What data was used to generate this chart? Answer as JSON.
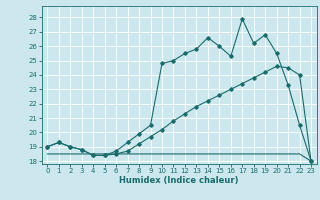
{
  "xlabel": "Humidex (Indice chaleur)",
  "bg_color": "#cce8ee",
  "grid_color": "#ffffff",
  "line_color": "#1a6b6b",
  "xlim": [
    -0.5,
    23.5
  ],
  "ylim": [
    17.8,
    28.8
  ],
  "yticks": [
    18,
    19,
    20,
    21,
    22,
    23,
    24,
    25,
    26,
    27,
    28
  ],
  "xticks": [
    0,
    1,
    2,
    3,
    4,
    5,
    6,
    7,
    8,
    9,
    10,
    11,
    12,
    13,
    14,
    15,
    16,
    17,
    18,
    19,
    20,
    21,
    22,
    23
  ],
  "line_jagged_x": [
    0,
    1,
    2,
    3,
    4,
    5,
    6,
    7,
    8,
    9,
    10,
    11,
    12,
    13,
    14,
    15,
    16,
    17,
    18,
    19,
    20,
    21,
    22,
    23
  ],
  "line_jagged_y": [
    19.0,
    19.3,
    19.0,
    18.8,
    18.4,
    18.4,
    18.7,
    19.3,
    19.9,
    20.5,
    24.8,
    25.0,
    25.5,
    25.8,
    26.6,
    26.0,
    25.3,
    27.9,
    26.2,
    26.8,
    25.5,
    23.3,
    20.5,
    18.0
  ],
  "line_smooth_x": [
    0,
    1,
    2,
    3,
    4,
    5,
    6,
    7,
    8,
    9,
    10,
    11,
    12,
    13,
    14,
    15,
    16,
    17,
    18,
    19,
    20,
    21,
    22,
    23
  ],
  "line_smooth_y": [
    19.0,
    19.3,
    19.0,
    18.8,
    18.4,
    18.4,
    18.5,
    18.7,
    19.2,
    19.7,
    20.2,
    20.8,
    21.3,
    21.8,
    22.2,
    22.6,
    23.0,
    23.4,
    23.8,
    24.2,
    24.6,
    24.5,
    24.0,
    18.0
  ],
  "line_flat_x": [
    0,
    1,
    2,
    3,
    4,
    5,
    6,
    7,
    8,
    9,
    10,
    11,
    12,
    13,
    14,
    15,
    16,
    17,
    18,
    19,
    20,
    21,
    22,
    23
  ],
  "line_flat_y": [
    18.5,
    18.5,
    18.5,
    18.5,
    18.5,
    18.5,
    18.5,
    18.5,
    18.5,
    18.5,
    18.5,
    18.5,
    18.5,
    18.5,
    18.5,
    18.5,
    18.5,
    18.5,
    18.5,
    18.5,
    18.5,
    18.5,
    18.5,
    18.0
  ]
}
